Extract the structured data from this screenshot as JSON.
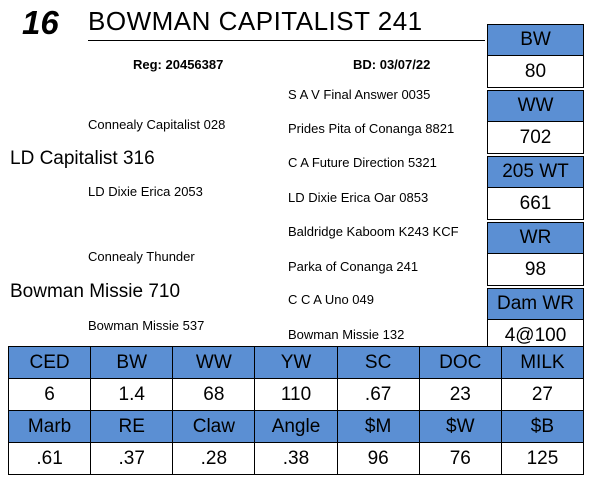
{
  "lot_number": "16",
  "animal_name": "BOWMAN CAPITALIST 241",
  "registration": "Reg: 20456387",
  "birth_date": "BD: 03/07/22",
  "pedigree": {
    "sire": "LD Capitalist 316",
    "sire_sire": "Connealy Capitalist 028",
    "sire_dam": "LD Dixie Erica 2053",
    "dam": "Bowman Missie 710",
    "dam_sire": "Connealy Thunder",
    "dam_dam": "Bowman Missie 537",
    "ggp": [
      "S A V Final Answer 0035",
      "Prides Pita of Conanga 8821",
      "C A Future Direction 5321",
      "LD Dixie Erica Oar 0853",
      "Baldridge Kaboom K243 KCF",
      "Parka of Conanga 241",
      "C C A Uno 049",
      "Bowman Missie 132"
    ]
  },
  "performance": [
    {
      "label": "BW",
      "value": "80"
    },
    {
      "label": "WW",
      "value": "702"
    },
    {
      "label": "205 WT",
      "value": "661"
    },
    {
      "label": "WR",
      "value": "98"
    },
    {
      "label": "Dam WR",
      "value": "4@100"
    }
  ],
  "epd_row1": {
    "headers": [
      "CED",
      "BW",
      "WW",
      "YW",
      "SC",
      "DOC",
      "MILK"
    ],
    "values": [
      "6",
      "1.4",
      "68",
      "110",
      ".67",
      "23",
      "27"
    ]
  },
  "epd_row2": {
    "headers": [
      "Marb",
      "RE",
      "Claw",
      "Angle",
      "$M",
      "$W",
      "$B"
    ],
    "values": [
      ".61",
      ".37",
      ".28",
      ".38",
      "96",
      "76",
      "125"
    ]
  },
  "colors": {
    "header_blue": "#5b8fd3"
  }
}
